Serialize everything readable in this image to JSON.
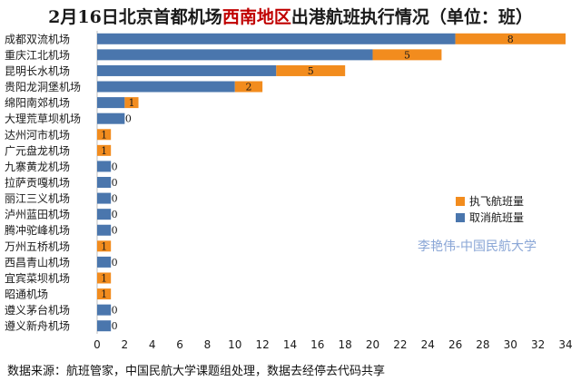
{
  "title": {
    "prefix": "2月16日北京首都机场",
    "highlight": "西南地区",
    "suffix": "出港航班执行情况（单位：班）"
  },
  "footer": "数据来源：航班管家，中国民航大学课题组处理，数据去经停去代码共享",
  "watermark": "李艳伟-中国民航大学",
  "colors": {
    "cancelled": "#4a76ad",
    "executed": "#f28c1e",
    "highlight": "#c00000"
  },
  "chart_data": {
    "type": "bar",
    "orientation": "horizontal",
    "stacked": true,
    "categories": [
      "成都双流机场",
      "重庆江北机场",
      "昆明长水机场",
      "贵阳龙洞堡机场",
      "绵阳南郊机场",
      "大理荒草坝机场",
      "达州河市机场",
      "广元盘龙机场",
      "九寨黄龙机场",
      "拉萨贡嘎机场",
      "丽江三义机场",
      "泸州蓝田机场",
      "腾冲驼峰机场",
      "万州五桥机场",
      "西昌青山机场",
      "宜宾菜坝机场",
      "昭通机场",
      "遵义茅台机场",
      "遵义新舟机场"
    ],
    "series": [
      {
        "name": "取消航班量",
        "values": [
          26,
          20,
          13,
          10,
          2,
          2,
          0,
          0,
          1,
          1,
          1,
          1,
          1,
          0,
          1,
          0,
          0,
          1,
          1
        ]
      },
      {
        "name": "执飞航班量",
        "values": [
          8,
          5,
          5,
          2,
          1,
          0,
          1,
          1,
          0,
          0,
          0,
          0,
          0,
          1,
          0,
          1,
          1,
          0,
          0
        ]
      }
    ],
    "xlim": [
      0,
      34
    ],
    "xticks": [
      0,
      2,
      4,
      6,
      8,
      10,
      12,
      14,
      16,
      18,
      20,
      22,
      24,
      26,
      28,
      30,
      32,
      34
    ],
    "legend_position": "right",
    "grid": false
  }
}
